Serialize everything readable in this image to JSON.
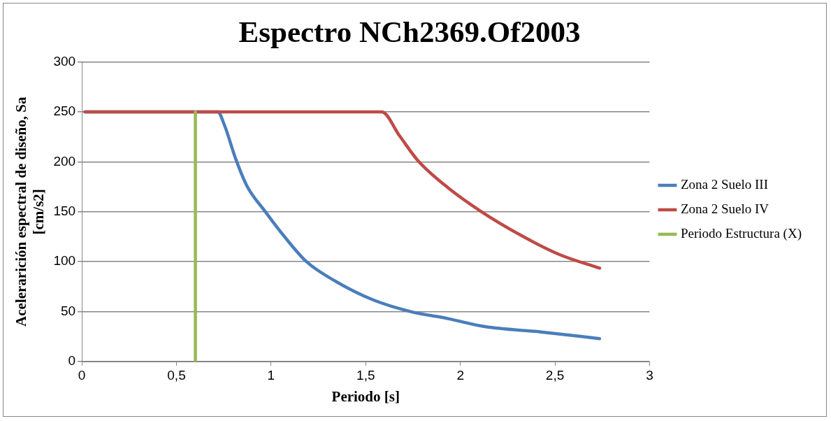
{
  "chart_data": {
    "type": "line",
    "title": "Espectro NCh2369.Of2003",
    "xlabel": "Periodo [s]",
    "ylabel": "Acelerarición espectral de diseño, Sa [cm/s2]",
    "series": [
      {
        "name": "Zona 2 Suelo III",
        "color": "#4a7ebb",
        "x": [
          0.016,
          0.718,
          0.754,
          0.813,
          0.872,
          0.97,
          1.069,
          1.187,
          1.344,
          1.541,
          1.738,
          1.935,
          2.13,
          2.427,
          2.736
        ],
        "values": [
          250,
          250,
          236.5,
          203,
          176,
          150,
          125.5,
          100,
          80,
          61.6,
          50,
          43,
          35,
          29.6,
          23
        ]
      },
      {
        "name": "Zona 2 Suelo IV",
        "color": "#be4b48",
        "x": [
          0.016,
          1.585,
          1.679,
          1.777,
          1.935,
          2.112,
          2.329,
          2.526,
          2.736
        ],
        "values": [
          250,
          250,
          226,
          201,
          174,
          150,
          125.5,
          107,
          93.5
        ]
      },
      {
        "name": "Periodo Estructura (X)",
        "color": "#98b954",
        "x": [
          0.6,
          0.6
        ],
        "values": [
          0,
          250
        ]
      }
    ],
    "xlim": [
      0,
      3
    ],
    "xticks": [
      0,
      {
        "value": 0.5,
        "label": "0,5"
      },
      1,
      {
        "value": 1.5,
        "label": "1,5"
      },
      2,
      {
        "value": 2.5,
        "label": "2,5"
      },
      3
    ],
    "ylim": [
      0,
      300
    ],
    "yticks": [
      0,
      50,
      100,
      150,
      200,
      250,
      300
    ],
    "grid": "y",
    "legend": "right",
    "marker": "none",
    "line_style": "solid"
  }
}
